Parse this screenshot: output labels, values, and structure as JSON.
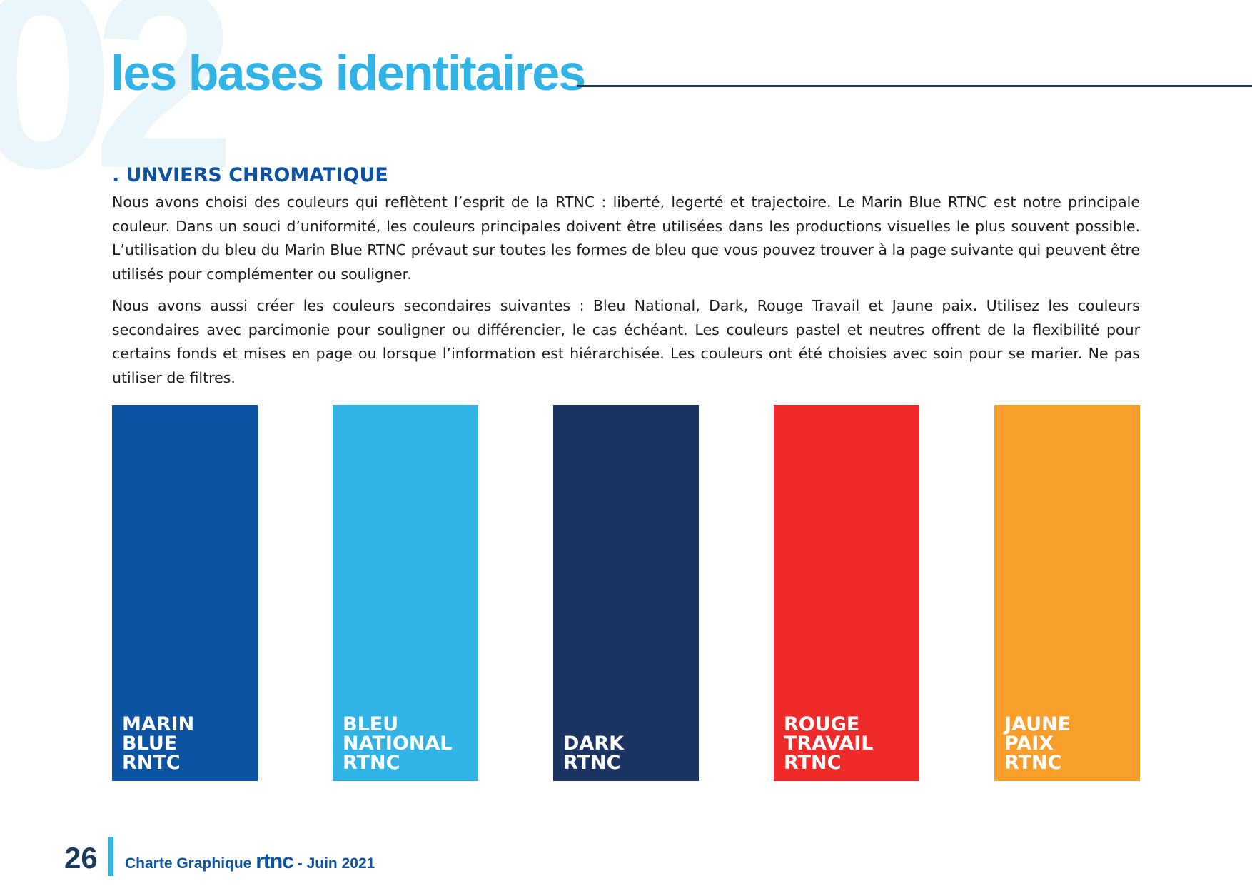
{
  "background_number": "02",
  "heading": "les bases identitaires",
  "section_title": ". UNVIERS CHROMATIQUE",
  "paragraphs": [
    "Nous avons choisi des couleurs qui reflètent l’esprit de la RTNC : liberté, legerté et trajectoire. Le Marin Blue RTNC est notre principale couleur. Dans un souci d’uniformité, les couleurs principales doivent être utilisées dans les productions visuelles le plus souvent possible.  L’utilisation du bleu du Marin Blue RTNC prévaut sur toutes les formes de bleu que vous pouvez trouver à la page suivante qui peuvent être utilisés pour complémenter ou souligner.",
    "Nous avons aussi créer les couleurs secondaires suivantes : Bleu National, Dark, Rouge Travail et Jaune paix. Utilisez les couleurs secondaires avec parcimonie pour souligner ou différencier, le cas échéant. Les couleurs pastel et neutres offrent de la flexibilité pour certains fonds et mises en page ou lorsque l’information est hiérarchisée. Les couleurs ont été choisies avec soin pour se marier. Ne pas utiliser de filtres."
  ],
  "swatches": [
    {
      "color": "#0c53a1",
      "lines": [
        "MARIN",
        "BLUE",
        "RNTC"
      ]
    },
    {
      "color": "#31b3e6",
      "lines": [
        "BLEU",
        "NATIONAL",
        "RTNC"
      ]
    },
    {
      "color": "#1b3461",
      "lines": [
        "DARK",
        "RTNC"
      ]
    },
    {
      "color": "#ef2a2b",
      "lines": [
        "ROUGE",
        "TRAVAIL",
        "RTNC"
      ]
    },
    {
      "color": "#f99e2a",
      "lines": [
        "JAUNE",
        "PAIX",
        "RTNC"
      ]
    }
  ],
  "footer": {
    "page_number": "26",
    "label": "Charte Graphique",
    "brand": "rtnc",
    "date": "- Juin 2021"
  }
}
